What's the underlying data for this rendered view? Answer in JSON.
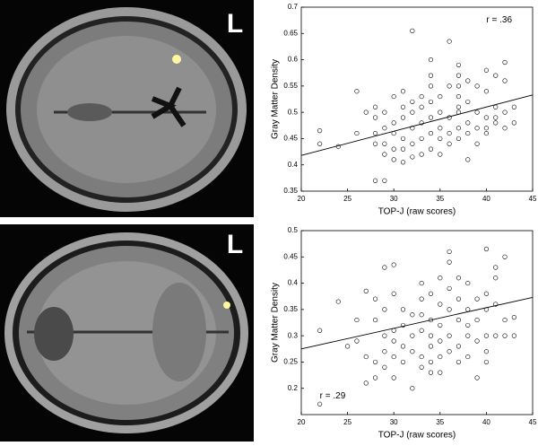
{
  "chart_data": [
    {
      "type": "scatter",
      "image_label": "L",
      "annotation": "r = .36",
      "x_label": "TOP-J (raw scores)",
      "y_label": "Gray Matter Density",
      "xlim": [
        20,
        45
      ],
      "xticks": [
        20,
        25,
        30,
        35,
        40,
        45
      ],
      "ylim": [
        0.35,
        0.7
      ],
      "yticks": [
        0.35,
        0.4,
        0.45,
        0.5,
        0.55,
        0.6,
        0.65,
        0.7
      ],
      "color": "#000000",
      "x": [
        22,
        22,
        24,
        26,
        26,
        27,
        28,
        28,
        28,
        28,
        28,
        29,
        29,
        29,
        29,
        29,
        30,
        30,
        30,
        30,
        30,
        31,
        31,
        31,
        31,
        31,
        31,
        32,
        32,
        32,
        32,
        32,
        32,
        33,
        33,
        33,
        33,
        33,
        34,
        34,
        34,
        34,
        34,
        34,
        34,
        35,
        35,
        35,
        35,
        35,
        36,
        36,
        36,
        36,
        36,
        37,
        37,
        37,
        37,
        37,
        37,
        37,
        37,
        38,
        38,
        38,
        38,
        38,
        39,
        39,
        39,
        39,
        40,
        40,
        40,
        40,
        40,
        41,
        41,
        41,
        41,
        42,
        42,
        42,
        42,
        43,
        43
      ],
      "values": [
        0.465,
        0.44,
        0.435,
        0.54,
        0.46,
        0.5,
        0.51,
        0.49,
        0.46,
        0.44,
        0.37,
        0.5,
        0.47,
        0.44,
        0.42,
        0.37,
        0.53,
        0.48,
        0.46,
        0.43,
        0.41,
        0.54,
        0.51,
        0.49,
        0.45,
        0.43,
        0.405,
        0.655,
        0.52,
        0.5,
        0.47,
        0.44,
        0.415,
        0.53,
        0.51,
        0.48,
        0.45,
        0.42,
        0.6,
        0.57,
        0.55,
        0.52,
        0.49,
        0.46,
        0.43,
        0.53,
        0.5,
        0.47,
        0.45,
        0.42,
        0.635,
        0.55,
        0.49,
        0.46,
        0.44,
        0.59,
        0.57,
        0.55,
        0.53,
        0.51,
        0.5,
        0.47,
        0.45,
        0.56,
        0.52,
        0.48,
        0.46,
        0.41,
        0.55,
        0.5,
        0.47,
        0.44,
        0.58,
        0.54,
        0.49,
        0.47,
        0.46,
        0.57,
        0.51,
        0.49,
        0.48,
        0.595,
        0.56,
        0.5,
        0.47,
        0.51,
        0.48
      ],
      "trend_line": {
        "x": [
          20,
          45
        ],
        "values": [
          0.418,
          0.533
        ]
      }
    },
    {
      "type": "scatter",
      "image_label": "L",
      "annotation": "r = .29",
      "x_label": "TOP-J (raw scores)",
      "y_label": "Gray Matter Density",
      "xlim": [
        20,
        45
      ],
      "xticks": [
        20,
        25,
        30,
        35,
        40,
        45
      ],
      "ylim": [
        0.15,
        0.5
      ],
      "yticks": [
        0.2,
        0.25,
        0.3,
        0.35,
        0.4,
        0.45,
        0.5
      ],
      "color": "#000000",
      "x": [
        22,
        22,
        24,
        25,
        26,
        26,
        27,
        27,
        27,
        28,
        28,
        28,
        28,
        29,
        29,
        29,
        29,
        29,
        30,
        30,
        30,
        30,
        30,
        30,
        31,
        31,
        31,
        31,
        32,
        32,
        32,
        32,
        33,
        33,
        33,
        33,
        33,
        33,
        34,
        34,
        34,
        34,
        34,
        34,
        35,
        35,
        35,
        35,
        35,
        35,
        36,
        36,
        36,
        36,
        36,
        36,
        37,
        37,
        37,
        37,
        37,
        38,
        38,
        38,
        38,
        38,
        39,
        39,
        39,
        39,
        40,
        40,
        40,
        40,
        40,
        40,
        41,
        41,
        41,
        41,
        42,
        42,
        42,
        43,
        43
      ],
      "values": [
        0.31,
        0.17,
        0.365,
        0.28,
        0.33,
        0.29,
        0.385,
        0.26,
        0.21,
        0.37,
        0.33,
        0.25,
        0.22,
        0.43,
        0.35,
        0.3,
        0.27,
        0.24,
        0.435,
        0.38,
        0.31,
        0.29,
        0.26,
        0.22,
        0.35,
        0.32,
        0.28,
        0.25,
        0.34,
        0.3,
        0.27,
        0.2,
        0.4,
        0.37,
        0.34,
        0.31,
        0.26,
        0.24,
        0.38,
        0.33,
        0.3,
        0.28,
        0.25,
        0.23,
        0.41,
        0.36,
        0.32,
        0.29,
        0.26,
        0.23,
        0.46,
        0.44,
        0.39,
        0.35,
        0.3,
        0.27,
        0.41,
        0.37,
        0.33,
        0.28,
        0.25,
        0.4,
        0.35,
        0.32,
        0.3,
        0.26,
        0.37,
        0.33,
        0.29,
        0.22,
        0.465,
        0.38,
        0.35,
        0.3,
        0.27,
        0.25,
        0.43,
        0.41,
        0.36,
        0.3,
        0.45,
        0.33,
        0.3,
        0.335,
        0.3
      ],
      "trend_line": {
        "x": [
          20,
          45
        ],
        "values": [
          0.275,
          0.373
        ]
      }
    }
  ]
}
